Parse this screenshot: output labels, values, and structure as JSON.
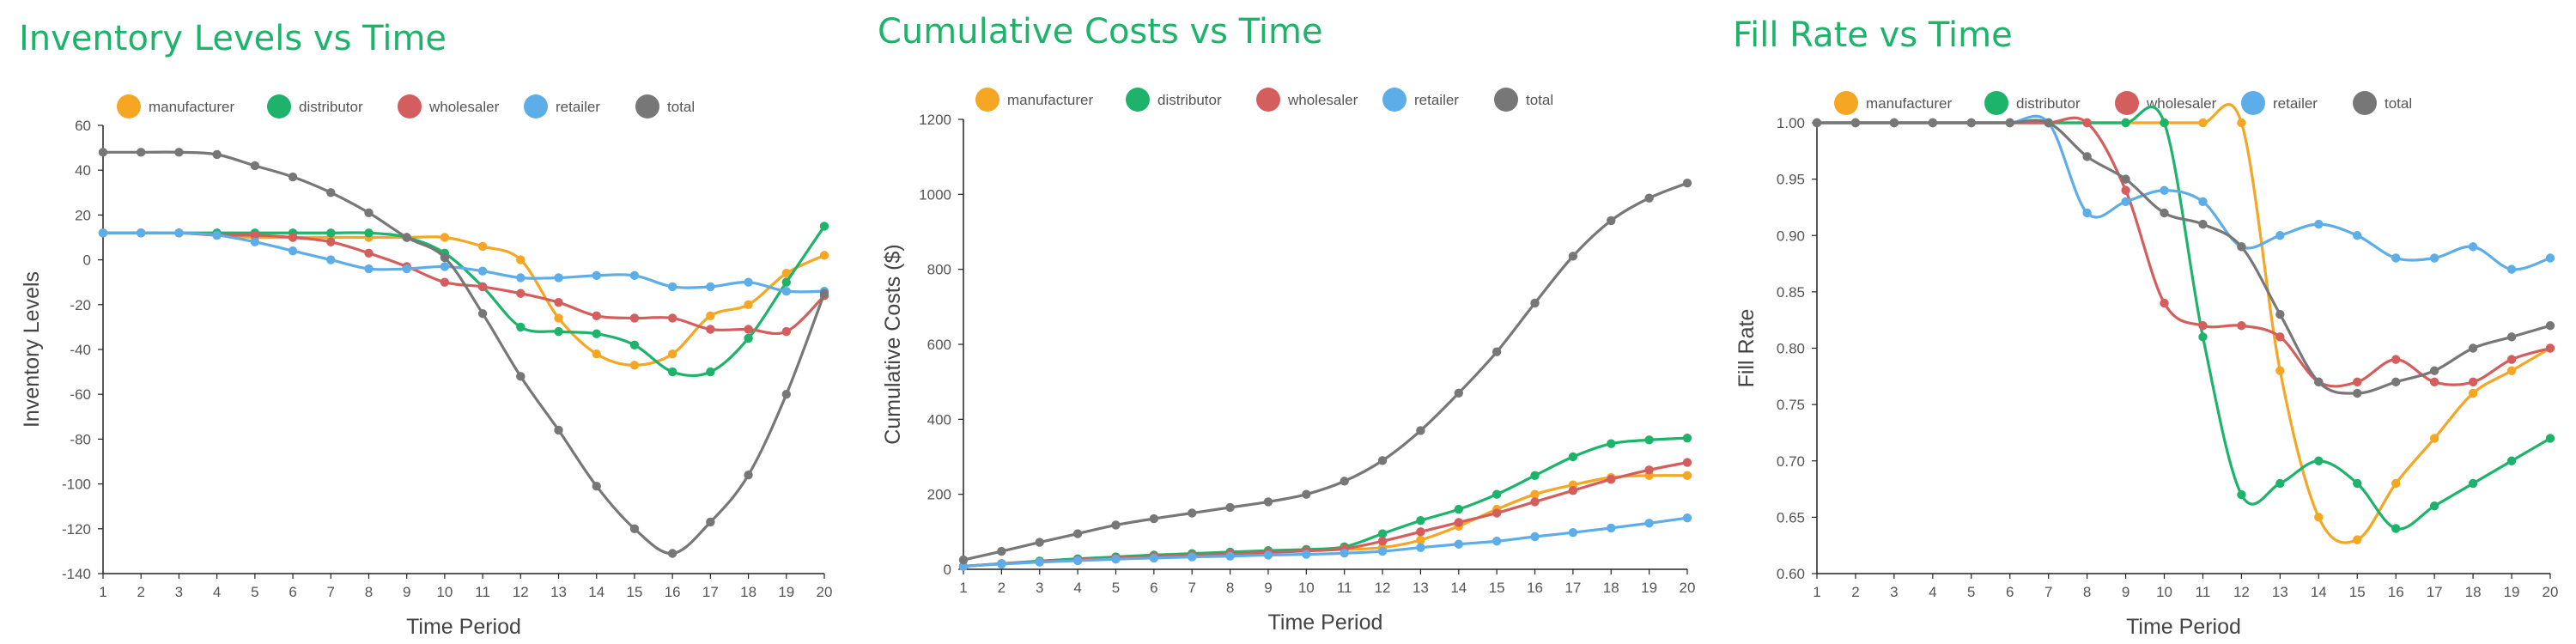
{
  "colors": {
    "title": "#1db36a",
    "axis": "#222222",
    "grid": "#e6e6e6",
    "text": "#555555"
  },
  "chart_data": [
    {
      "type": "line",
      "title": "Inventory Levels vs Time",
      "xlabel": "Time Period",
      "ylabel": "Inventory Levels",
      "x": [
        1,
        2,
        3,
        4,
        5,
        6,
        7,
        8,
        9,
        10,
        11,
        12,
        13,
        14,
        15,
        16,
        17,
        18,
        19,
        20
      ],
      "xlim": [
        1,
        20
      ],
      "ylim": [
        -140,
        60
      ],
      "yticks": [
        -140,
        -120,
        -100,
        -80,
        -60,
        -40,
        -20,
        0,
        20,
        40,
        60
      ],
      "ytick_labels": [
        "-140",
        "-120",
        "-100",
        "-80",
        "-60",
        "-40",
        "-20",
        "0",
        "20",
        "40",
        "60"
      ],
      "grid": false,
      "legend": "top-left",
      "series": [
        {
          "name": "manufacturer",
          "color": "#f5a623",
          "values": [
            12,
            12,
            12,
            11,
            10,
            10,
            10,
            10,
            10,
            10,
            6,
            0,
            -26,
            -42,
            -47,
            -42,
            -25,
            -20,
            -6,
            2
          ]
        },
        {
          "name": "distributor",
          "color": "#1db36a",
          "values": [
            12,
            12,
            12,
            12,
            12,
            12,
            12,
            12,
            10,
            3,
            -12,
            -30,
            -32,
            -33,
            -38,
            -50,
            -50,
            -35,
            -10,
            15
          ]
        },
        {
          "name": "wholesaler",
          "color": "#d45d5d",
          "values": [
            12,
            12,
            12,
            11,
            11,
            10,
            8,
            3,
            -3,
            -10,
            -12,
            -15,
            -19,
            -25,
            -26,
            -26,
            -31,
            -31,
            -32,
            -16
          ]
        },
        {
          "name": "retailer",
          "color": "#5dade8",
          "values": [
            12,
            12,
            12,
            11,
            8,
            4,
            0,
            -4,
            -4,
            -3,
            -5,
            -8,
            -8,
            -7,
            -7,
            -12,
            -12,
            -10,
            -14,
            -14
          ]
        },
        {
          "name": "total",
          "color": "#777777",
          "values": [
            48,
            48,
            48,
            47,
            42,
            37,
            30,
            21,
            10,
            1,
            -24,
            -52,
            -76,
            -101,
            -120,
            -131,
            -117,
            -96,
            -60,
            -15
          ]
        }
      ]
    },
    {
      "type": "line",
      "title": "Cumulative Costs vs Time",
      "xlabel": "Time Period",
      "ylabel": "Cumulative Costs ($)",
      "x": [
        1,
        2,
        3,
        4,
        5,
        6,
        7,
        8,
        9,
        10,
        11,
        12,
        13,
        14,
        15,
        16,
        17,
        18,
        19,
        20
      ],
      "xlim": [
        1,
        20
      ],
      "ylim": [
        0,
        1200
      ],
      "yticks": [
        0,
        200,
        400,
        600,
        800,
        1000,
        1200
      ],
      "ytick_labels": [
        "0",
        "200",
        "400",
        "600",
        "800",
        "1000",
        "1200"
      ],
      "grid": false,
      "legend": "top-left",
      "series": [
        {
          "name": "manufacturer",
          "color": "#f5a623",
          "values": [
            8,
            15,
            22,
            27,
            33,
            38,
            41,
            44,
            48,
            51,
            53,
            58,
            78,
            115,
            160,
            200,
            225,
            245,
            250,
            250
          ]
        },
        {
          "name": "distributor",
          "color": "#1db36a",
          "values": [
            8,
            15,
            22,
            28,
            33,
            38,
            42,
            46,
            50,
            53,
            60,
            95,
            130,
            160,
            200,
            250,
            300,
            335,
            345,
            350
          ]
        },
        {
          "name": "wholesaler",
          "color": "#d45d5d",
          "values": [
            8,
            15,
            20,
            25,
            30,
            34,
            37,
            41,
            45,
            49,
            55,
            75,
            100,
            125,
            150,
            180,
            210,
            240,
            265,
            285
          ]
        },
        {
          "name": "retailer",
          "color": "#5dade8",
          "values": [
            8,
            14,
            19,
            23,
            27,
            30,
            33,
            35,
            38,
            40,
            43,
            48,
            58,
            67,
            75,
            87,
            98,
            110,
            123,
            137
          ]
        },
        {
          "name": "total",
          "color": "#777777",
          "values": [
            25,
            48,
            72,
            95,
            118,
            135,
            150,
            165,
            180,
            200,
            235,
            290,
            370,
            470,
            580,
            710,
            835,
            930,
            990,
            1030
          ]
        }
      ]
    },
    {
      "type": "line",
      "title": "Fill Rate vs Time",
      "xlabel": "Time Period",
      "ylabel": "Fill Rate",
      "x": [
        1,
        2,
        3,
        4,
        5,
        6,
        7,
        8,
        9,
        10,
        11,
        12,
        13,
        14,
        15,
        16,
        17,
        18,
        19,
        20
      ],
      "xlim": [
        1,
        20
      ],
      "ylim": [
        0.6,
        1.0
      ],
      "yticks": [
        0.6,
        0.65,
        0.7,
        0.75,
        0.8,
        0.85,
        0.9,
        0.95,
        1.0
      ],
      "ytick_labels": [
        "0.60",
        "0.65",
        "0.70",
        "0.75",
        "0.80",
        "0.85",
        "0.90",
        "0.95",
        "1.00"
      ],
      "grid": false,
      "legend": "top-left",
      "series": [
        {
          "name": "manufacturer",
          "color": "#f5a623",
          "values": [
            1.0,
            1.0,
            1.0,
            1.0,
            1.0,
            1.0,
            1.0,
            1.0,
            1.0,
            1.0,
            1.0,
            1.0,
            0.78,
            0.65,
            0.63,
            0.68,
            0.72,
            0.76,
            0.78,
            0.8
          ]
        },
        {
          "name": "distributor",
          "color": "#1db36a",
          "values": [
            1.0,
            1.0,
            1.0,
            1.0,
            1.0,
            1.0,
            1.0,
            1.0,
            1.0,
            1.0,
            0.81,
            0.67,
            0.68,
            0.7,
            0.68,
            0.64,
            0.66,
            0.68,
            0.7,
            0.72
          ]
        },
        {
          "name": "wholesaler",
          "color": "#d45d5d",
          "values": [
            1.0,
            1.0,
            1.0,
            1.0,
            1.0,
            1.0,
            1.0,
            1.0,
            0.94,
            0.84,
            0.82,
            0.82,
            0.81,
            0.77,
            0.77,
            0.79,
            0.77,
            0.77,
            0.79,
            0.8
          ]
        },
        {
          "name": "retailer",
          "color": "#5dade8",
          "values": [
            1.0,
            1.0,
            1.0,
            1.0,
            1.0,
            1.0,
            1.0,
            0.92,
            0.93,
            0.94,
            0.93,
            0.89,
            0.9,
            0.91,
            0.9,
            0.88,
            0.88,
            0.89,
            0.87,
            0.88
          ]
        },
        {
          "name": "total",
          "color": "#777777",
          "values": [
            1.0,
            1.0,
            1.0,
            1.0,
            1.0,
            1.0,
            1.0,
            0.97,
            0.95,
            0.92,
            0.91,
            0.89,
            0.83,
            0.77,
            0.76,
            0.77,
            0.78,
            0.8,
            0.81,
            0.82
          ]
        }
      ]
    }
  ]
}
